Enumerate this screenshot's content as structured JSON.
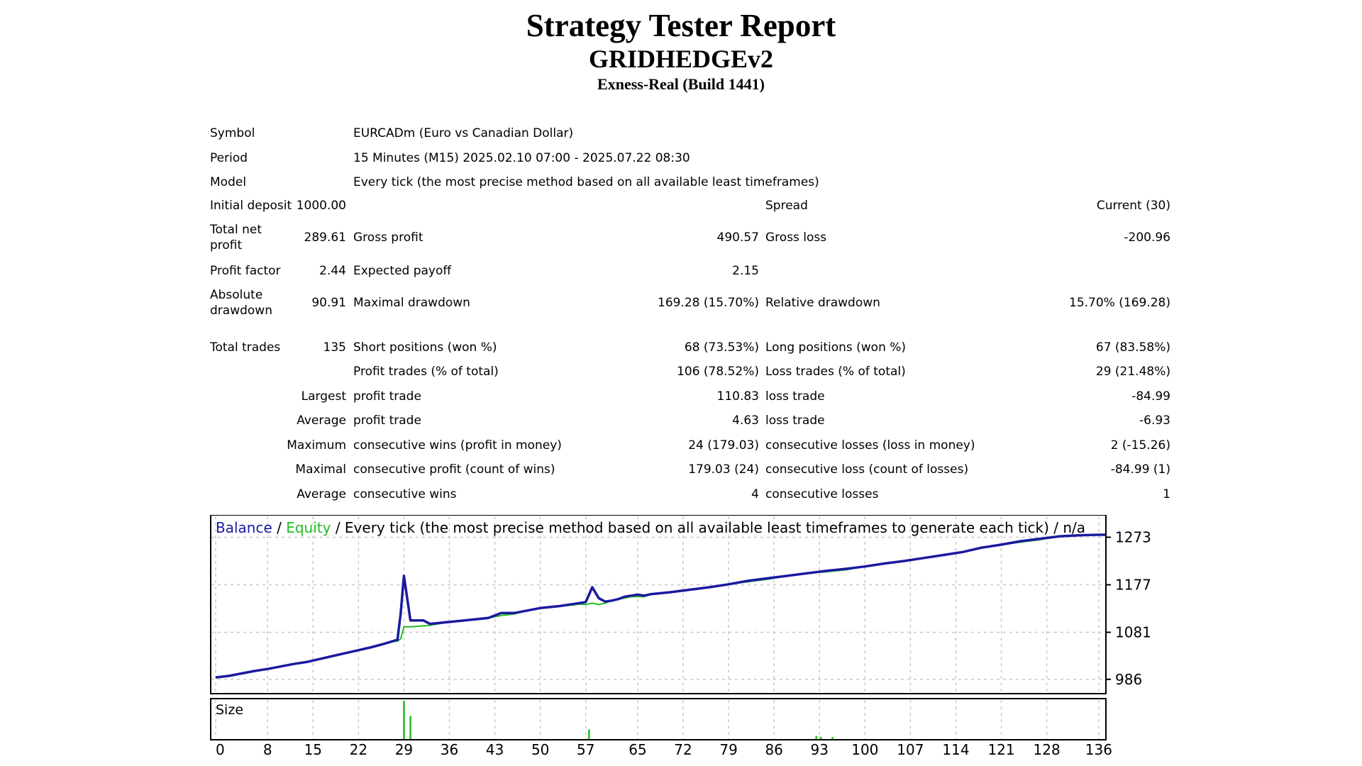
{
  "report": {
    "title": "Strategy Tester Report",
    "expert": "GRIDHEDGEv2",
    "server": "Exness-Real (Build 1441)"
  },
  "settings": {
    "symbol_label": "Symbol",
    "symbol_value": "EURCADm (Euro vs Canadian Dollar)",
    "period_label": "Period",
    "period_value": "15 Minutes (M15) 2025.02.10 07:00 - 2025.07.22 08:30",
    "model_label": "Model",
    "model_value": "Every tick (the most precise method based on all available least timeframes)",
    "deposit_label": "Initial deposit",
    "deposit_value": "1000.00",
    "spread_label": "Spread",
    "spread_value": "Current (30)"
  },
  "results": {
    "net_profit_label": "Total net profit",
    "net_profit_value": "289.61",
    "gross_profit_label": "Gross profit",
    "gross_profit_value": "490.57",
    "gross_loss_label": "Gross loss",
    "gross_loss_value": "-200.96",
    "profit_factor_label": "Profit factor",
    "profit_factor_value": "2.44",
    "expected_payoff_label": "Expected payoff",
    "expected_payoff_value": "2.15",
    "abs_dd_label": "Absolute drawdown",
    "abs_dd_value": "90.91",
    "max_dd_label": "Maximal drawdown",
    "max_dd_value": "169.28 (15.70%)",
    "rel_dd_label": "Relative drawdown",
    "rel_dd_value": "15.70% (169.28)",
    "total_trades_label": "Total trades",
    "total_trades_value": "135",
    "short_label": "Short positions (won %)",
    "short_value": "68 (73.53%)",
    "long_label": "Long positions (won %)",
    "long_value": "67 (83.58%)",
    "profit_trades_label": "Profit trades (% of total)",
    "profit_trades_value": "106 (78.52%)",
    "loss_trades_label": "Loss trades (% of total)",
    "loss_trades_value": "29 (21.48%)",
    "largest_label": "Largest",
    "largest_profit_label": "profit trade",
    "largest_profit_value": "110.83",
    "largest_loss_label": "loss trade",
    "largest_loss_value": "-84.99",
    "average_label": "Average",
    "average_profit_label": "profit trade",
    "average_profit_value": "4.63",
    "average_loss_label": "loss trade",
    "average_loss_value": "-6.93",
    "maximum_label": "Maximum",
    "max_cons_wins_label": "consecutive wins (profit in money)",
    "max_cons_wins_value": "24 (179.03)",
    "max_cons_losses_label": "consecutive losses (loss in money)",
    "max_cons_losses_value": "2 (-15.26)",
    "maximal_label": "Maximal",
    "maximal_cons_profit_label": "consecutive profit (count of wins)",
    "maximal_cons_profit_value": "179.03 (24)",
    "maximal_cons_loss_label": "consecutive loss (count of losses)",
    "maximal_cons_loss_value": "-84.99 (1)",
    "avg_label": "Average",
    "avg_cons_wins_label": "consecutive wins",
    "avg_cons_wins_value": "4",
    "avg_cons_losses_label": "consecutive losses",
    "avg_cons_losses_value": "1"
  },
  "chart_data": {
    "type": "line",
    "legend": {
      "balance": "Balance",
      "equity": "Equity",
      "rest": " / Every tick (the most precise method based on all available least timeframes to generate each tick) / n/a"
    },
    "size_label": "Size",
    "colors": {
      "balance": "#1a1aa0",
      "equity": "#22bb22",
      "frame": "#000000",
      "grid": "#c8c8c8"
    },
    "x_ticks": [
      0,
      8,
      15,
      22,
      29,
      36,
      43,
      50,
      57,
      65,
      72,
      79,
      86,
      93,
      100,
      107,
      114,
      121,
      128,
      136
    ],
    "xlim": [
      0,
      137
    ],
    "y_ticks": [
      986,
      1081,
      1177,
      1273
    ],
    "ylim": [
      960,
      1298
    ],
    "series": [
      {
        "name": "Balance",
        "x": [
          0,
          2,
          4,
          6,
          8,
          10,
          12,
          14,
          16,
          18,
          20,
          22,
          24,
          26,
          27,
          28,
          28.5,
          29,
          29.5,
          30,
          31,
          32,
          33,
          36,
          39,
          42,
          44,
          46,
          48,
          50,
          53,
          55,
          56,
          57,
          58,
          59,
          60,
          61,
          62,
          63,
          64,
          65,
          66,
          67,
          70,
          73,
          76,
          79,
          82,
          85,
          88,
          91,
          94,
          97,
          100,
          103,
          106,
          109,
          112,
          115,
          118,
          121,
          124,
          127,
          130,
          133,
          136,
          137
        ],
        "y": [
          990,
          993,
          998,
          1003,
          1007,
          1012,
          1017,
          1021,
          1027,
          1033,
          1039,
          1045,
          1051,
          1058,
          1062,
          1066,
          1120,
          1195,
          1150,
          1105,
          1105,
          1105,
          1098,
          1102,
          1106,
          1110,
          1120,
          1120,
          1125,
          1130,
          1134,
          1138,
          1140,
          1142,
          1172,
          1150,
          1143,
          1145,
          1148,
          1153,
          1155,
          1157,
          1155,
          1158,
          1162,
          1167,
          1172,
          1178,
          1185,
          1190,
          1195,
          1200,
          1205,
          1209,
          1214,
          1220,
          1225,
          1231,
          1237,
          1243,
          1252,
          1258,
          1265,
          1270,
          1275,
          1277,
          1278,
          1278
        ]
      },
      {
        "name": "Equity",
        "x": [
          0,
          2,
          4,
          6,
          8,
          10,
          12,
          14,
          16,
          18,
          20,
          22,
          24,
          26,
          27,
          28,
          28.5,
          29,
          30,
          31,
          32,
          33,
          36,
          39,
          42,
          44,
          46,
          48,
          50,
          53,
          55,
          56,
          57,
          58,
          59,
          60,
          61,
          62,
          63,
          64,
          65,
          66,
          67,
          70,
          73,
          76,
          79,
          82,
          85,
          88,
          91,
          94,
          97,
          100,
          103,
          106,
          109,
          112,
          115,
          118,
          121,
          124,
          127,
          130,
          133,
          136,
          137
        ],
        "y": [
          990,
          993,
          998,
          1003,
          1007,
          1012,
          1017,
          1021,
          1027,
          1033,
          1039,
          1045,
          1051,
          1058,
          1062,
          1063,
          1068,
          1092,
          1092,
          1093,
          1094,
          1095,
          1102,
          1106,
          1110,
          1115,
          1118,
          1125,
          1130,
          1134,
          1136,
          1138,
          1137,
          1140,
          1137,
          1140,
          1145,
          1148,
          1150,
          1153,
          1153,
          1153,
          1158,
          1162,
          1167,
          1172,
          1178,
          1183,
          1188,
          1195,
          1200,
          1203,
          1207,
          1214,
          1220,
          1225,
          1231,
          1237,
          1243,
          1252,
          1258,
          1263,
          1268,
          1275,
          1277,
          1278,
          1278
        ]
      }
    ],
    "size_bars": [
      {
        "x": 29,
        "h": 1.0,
        "color": "#22bb22"
      },
      {
        "x": 30,
        "h": 0.6,
        "color": "#22bb22"
      },
      {
        "x": 57.5,
        "h": 0.25,
        "color": "#22bb22"
      },
      {
        "x": 92.5,
        "h": 0.08,
        "color": "#22bb22"
      },
      {
        "x": 93.2,
        "h": 0.06,
        "color": "#22bb22"
      },
      {
        "x": 95,
        "h": 0.05,
        "color": "#22bb22"
      }
    ]
  }
}
